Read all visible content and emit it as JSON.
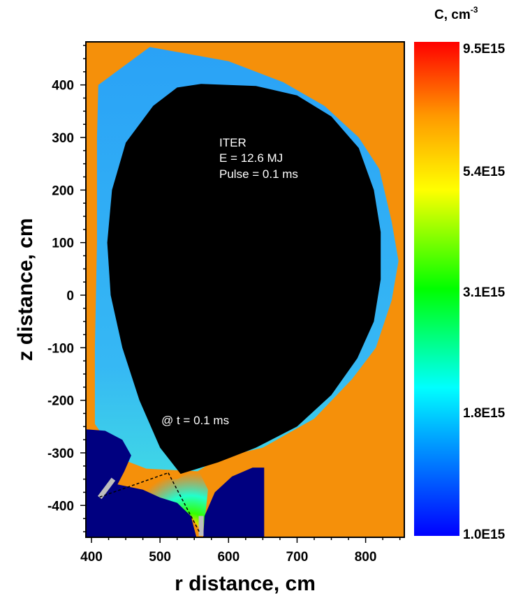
{
  "chart_data": {
    "type": "heatmap",
    "title": "",
    "xlabel": "r distance, cm",
    "ylabel": "z distance, cm",
    "xlim": [
      390,
      855
    ],
    "ylim": [
      -460,
      480
    ],
    "x_ticks": [
      400,
      500,
      600,
      700,
      800
    ],
    "y_ticks": [
      400,
      300,
      200,
      100,
      0,
      -100,
      -200,
      -300,
      -400
    ],
    "annotations": [
      "ITER",
      "E = 12.6 MJ",
      "Pulse = 0.1 ms",
      "@ t = 0.1 ms"
    ],
    "colorbar": {
      "label": "C,  cm",
      "label_exponent": "-3",
      "tick_labels": [
        "9.5E15",
        "5.4E15",
        "3.1E15",
        "1.8E15",
        "1.0E15"
      ],
      "tick_values": [
        9500000000000000.0,
        5400000000000000.0,
        3100000000000000.0,
        1800000000000000.0,
        1000000000000000.0
      ]
    },
    "colors": {
      "background_region": "#f5900a",
      "plasma_core": "#000000",
      "vapor_region": "#29a3f5",
      "divertor_walls": "#000080",
      "divertor_plates": "#bdbdbd"
    },
    "plasma_boundary": [
      [
        560,
        402
      ],
      [
        640,
        398
      ],
      [
        700,
        380
      ],
      [
        750,
        340
      ],
      [
        790,
        280
      ],
      [
        812,
        200
      ],
      [
        822,
        120
      ],
      [
        822,
        30
      ],
      [
        812,
        -50
      ],
      [
        788,
        -120
      ],
      [
        750,
        -190
      ],
      [
        700,
        -250
      ],
      [
        640,
        -290
      ],
      [
        585,
        -318
      ],
      [
        530,
        -340
      ],
      [
        500,
        -290
      ],
      [
        470,
        -200
      ],
      [
        445,
        -100
      ],
      [
        428,
        0
      ],
      [
        423,
        100
      ],
      [
        430,
        200
      ],
      [
        450,
        290
      ],
      [
        490,
        360
      ],
      [
        525,
        395
      ]
    ],
    "vapor_outer": [
      [
        410,
        400
      ],
      [
        485,
        472
      ],
      [
        600,
        445
      ],
      [
        680,
        405
      ],
      [
        740,
        360
      ],
      [
        790,
        300
      ],
      [
        820,
        240
      ],
      [
        838,
        140
      ],
      [
        848,
        65
      ],
      [
        838,
        -10
      ],
      [
        815,
        -100
      ],
      [
        780,
        -160
      ],
      [
        725,
        -235
      ],
      [
        650,
        -290
      ],
      [
        585,
        -310
      ],
      [
        555,
        -335
      ],
      [
        480,
        -330
      ],
      [
        440,
        -310
      ],
      [
        405,
        -245
      ],
      [
        405,
        -100
      ],
      [
        408,
        100
      ],
      [
        408,
        300
      ]
    ],
    "divertor_left": [
      [
        390,
        -255
      ],
      [
        420,
        -258
      ],
      [
        445,
        -275
      ],
      [
        458,
        -305
      ],
      [
        448,
        -335
      ],
      [
        438,
        -360
      ],
      [
        475,
        -370
      ],
      [
        500,
        -385
      ],
      [
        525,
        -395
      ],
      [
        545,
        -420
      ],
      [
        553,
        -460
      ],
      [
        390,
        -460
      ]
    ],
    "divertor_right": [
      [
        563,
        -460
      ],
      [
        565,
        -420
      ],
      [
        580,
        -375
      ],
      [
        605,
        -345
      ],
      [
        635,
        -328
      ],
      [
        652,
        -328
      ],
      [
        652,
        -460
      ]
    ],
    "hot_spot_region": [
      [
        525,
        -350
      ],
      [
        555,
        -330
      ],
      [
        570,
        -370
      ],
      [
        563,
        -455
      ],
      [
        545,
        -420
      ],
      [
        500,
        -385
      ],
      [
        470,
        -370
      ],
      [
        478,
        -350
      ]
    ],
    "plates": [
      {
        "from": [
          412,
          -385
        ],
        "to": [
          432,
          -350
        ]
      },
      {
        "from": [
          560,
          -420
        ],
        "to": [
          560,
          -458
        ]
      }
    ],
    "dashed_lines": [
      {
        "from": [
          412,
          -384
        ],
        "to": [
          512,
          -338
        ]
      },
      {
        "from": [
          512,
          -338
        ],
        "to": [
          558,
          -452
        ]
      }
    ]
  }
}
